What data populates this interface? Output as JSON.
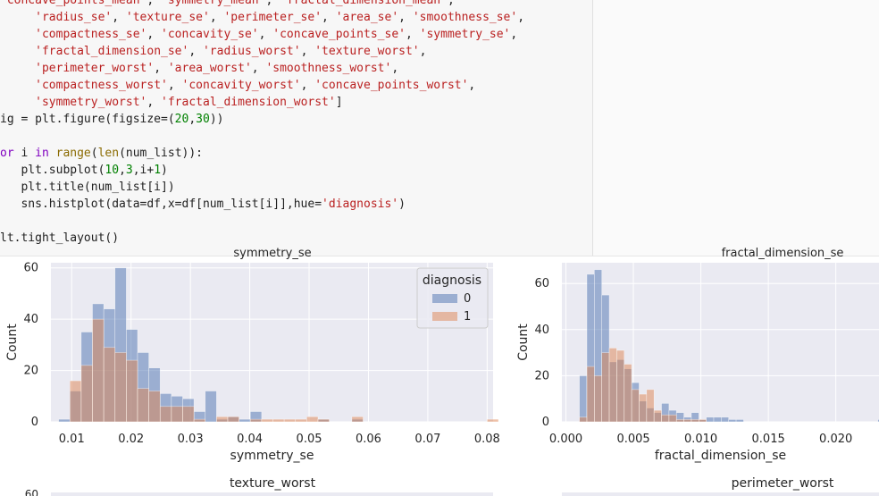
{
  "code_lines": [
    [
      [
        "s",
        "'concave_points_mean'"
      ],
      [
        "t",
        ", "
      ],
      [
        "s",
        "'symmetry_mean'"
      ],
      [
        "t",
        ", "
      ],
      [
        "s",
        "'fractal_dimension_mean'"
      ],
      [
        "t",
        ","
      ]
    ],
    [
      [
        "t",
        "     "
      ],
      [
        "s",
        "'radius_se'"
      ],
      [
        "t",
        ", "
      ],
      [
        "s",
        "'texture_se'"
      ],
      [
        "t",
        ", "
      ],
      [
        "s",
        "'perimeter_se'"
      ],
      [
        "t",
        ", "
      ],
      [
        "s",
        "'area_se'"
      ],
      [
        "t",
        ", "
      ],
      [
        "s",
        "'smoothness_se'"
      ],
      [
        "t",
        ","
      ]
    ],
    [
      [
        "t",
        "     "
      ],
      [
        "s",
        "'compactness_se'"
      ],
      [
        "t",
        ", "
      ],
      [
        "s",
        "'concavity_se'"
      ],
      [
        "t",
        ", "
      ],
      [
        "s",
        "'concave_points_se'"
      ],
      [
        "t",
        ", "
      ],
      [
        "s",
        "'symmetry_se'"
      ],
      [
        "t",
        ","
      ]
    ],
    [
      [
        "t",
        "     "
      ],
      [
        "s",
        "'fractal_dimension_se'"
      ],
      [
        "t",
        ", "
      ],
      [
        "s",
        "'radius_worst'"
      ],
      [
        "t",
        ", "
      ],
      [
        "s",
        "'texture_worst'"
      ],
      [
        "t",
        ","
      ]
    ],
    [
      [
        "t",
        "     "
      ],
      [
        "s",
        "'perimeter_worst'"
      ],
      [
        "t",
        ", "
      ],
      [
        "s",
        "'area_worst'"
      ],
      [
        "t",
        ", "
      ],
      [
        "s",
        "'smoothness_worst'"
      ],
      [
        "t",
        ","
      ]
    ],
    [
      [
        "t",
        "     "
      ],
      [
        "s",
        "'compactness_worst'"
      ],
      [
        "t",
        ", "
      ],
      [
        "s",
        "'concavity_worst'"
      ],
      [
        "t",
        ", "
      ],
      [
        "s",
        "'concave_points_worst'"
      ],
      [
        "t",
        ","
      ]
    ],
    [
      [
        "t",
        "     "
      ],
      [
        "s",
        "'symmetry_worst'"
      ],
      [
        "t",
        ", "
      ],
      [
        "s",
        "'fractal_dimension_worst'"
      ],
      [
        "t",
        "]"
      ]
    ],
    [
      [
        "t",
        "ig = plt.figure(figsize=("
      ],
      [
        "n",
        "20"
      ],
      [
        "t",
        ","
      ],
      [
        "n",
        "30"
      ],
      [
        "t",
        "))"
      ]
    ],
    [
      [
        "t",
        ""
      ]
    ],
    [
      [
        "k",
        "or"
      ],
      [
        "t",
        " i "
      ],
      [
        "k",
        "in"
      ],
      [
        "t",
        " "
      ],
      [
        "b",
        "range"
      ],
      [
        "t",
        "("
      ],
      [
        "b",
        "len"
      ],
      [
        "t",
        "(num_list)):"
      ]
    ],
    [
      [
        "t",
        "   plt.subplot("
      ],
      [
        "n",
        "10"
      ],
      [
        "t",
        ","
      ],
      [
        "n",
        "3"
      ],
      [
        "t",
        ",i+"
      ],
      [
        "n",
        "1"
      ],
      [
        "t",
        ")"
      ]
    ],
    [
      [
        "t",
        "   plt.title(num_list[i])"
      ]
    ],
    [
      [
        "t",
        "   sns.histplot(data=df,x=df[num_list[i]],hue="
      ],
      [
        "s",
        "'diagnosis'"
      ],
      [
        "t",
        ")"
      ]
    ],
    [
      [
        "t",
        ""
      ]
    ],
    [
      [
        "t",
        "lt.tight_layout()"
      ]
    ]
  ],
  "charts_text": {
    "top_titles": [
      "symmetry_se",
      "fractal_dimension_se"
    ],
    "bottom_titles": [
      "texture_worst",
      "perimeter_worst"
    ],
    "ylabel": "Count",
    "legend_title": "diagnosis",
    "legend_labels": [
      "0",
      "1"
    ],
    "bottom_peek_tick": "60"
  },
  "colors": {
    "benign": "#4c72b0",
    "malignant": "#dd8452",
    "plot_bg": "#eaeaf2"
  },
  "chart_data": [
    {
      "type": "bar",
      "title": "symmetry_se",
      "xlabel": "symmetry_se",
      "ylabel": "Count",
      "xlim": [
        0.0065,
        0.081
      ],
      "ylim": [
        0,
        62
      ],
      "xticks": [
        "0.01",
        "0.02",
        "0.03",
        "0.04",
        "0.05",
        "0.06",
        "0.07",
        "0.08"
      ],
      "yticks": [
        "0",
        "20",
        "40",
        "60"
      ],
      "legend": {
        "title": "diagnosis",
        "entries": [
          "0",
          "1"
        ],
        "placement": "top-right"
      },
      "bin_start": 0.0078,
      "bin_width": 0.0019,
      "series": [
        {
          "name": "0",
          "color": "#4c72b0",
          "values": [
            1,
            12,
            35,
            46,
            44,
            60,
            36,
            27,
            21,
            11,
            10,
            9,
            4,
            12,
            1,
            2,
            1,
            4,
            0,
            0,
            0,
            0,
            0,
            1,
            0,
            0,
            1,
            0,
            0,
            0,
            0,
            0,
            0,
            0,
            0,
            0,
            0,
            0,
            0
          ]
        },
        {
          "name": "1",
          "color": "#dd8452",
          "values": [
            0,
            16,
            22,
            40,
            29,
            27,
            24,
            13,
            12,
            6,
            6,
            6,
            1,
            0,
            2,
            2,
            0,
            1,
            1,
            1,
            1,
            1,
            2,
            1,
            0,
            0,
            2,
            0,
            0,
            0,
            0,
            0,
            0,
            0,
            0,
            0,
            0,
            0,
            1
          ]
        }
      ]
    },
    {
      "type": "bar",
      "title": "fractal_dimension_se",
      "xlabel": "fractal_dimension_se",
      "ylabel": "Count",
      "xlim": [
        -0.0003,
        0.0232
      ],
      "ylim": [
        0,
        69
      ],
      "xticks": [
        "0.000",
        "0.005",
        "0.010",
        "0.015",
        "0.020"
      ],
      "yticks": [
        "0",
        "20",
        "40",
        "60"
      ],
      "bin_start": 0.001,
      "bin_width": 0.000553,
      "series": [
        {
          "name": "0",
          "color": "#4c72b0",
          "values": [
            20,
            64,
            66,
            55,
            26,
            27,
            23,
            17,
            9,
            6,
            4,
            8,
            5,
            4,
            2,
            4,
            1,
            2,
            2,
            2,
            1,
            1,
            0,
            0,
            0,
            0,
            0,
            0,
            0,
            0,
            0,
            0,
            0,
            0,
            0,
            0,
            0,
            0,
            0,
            0,
            1
          ]
        },
        {
          "name": "1",
          "color": "#dd8452",
          "values": [
            2,
            24,
            20,
            30,
            32,
            31,
            25,
            14,
            12,
            14,
            5,
            3,
            3,
            1,
            1,
            1,
            1,
            0,
            0,
            0,
            0,
            0,
            0,
            0,
            0,
            0,
            0,
            0,
            0,
            0,
            0,
            0,
            0,
            0,
            0,
            0,
            0,
            0,
            0,
            0,
            0
          ]
        }
      ]
    }
  ]
}
